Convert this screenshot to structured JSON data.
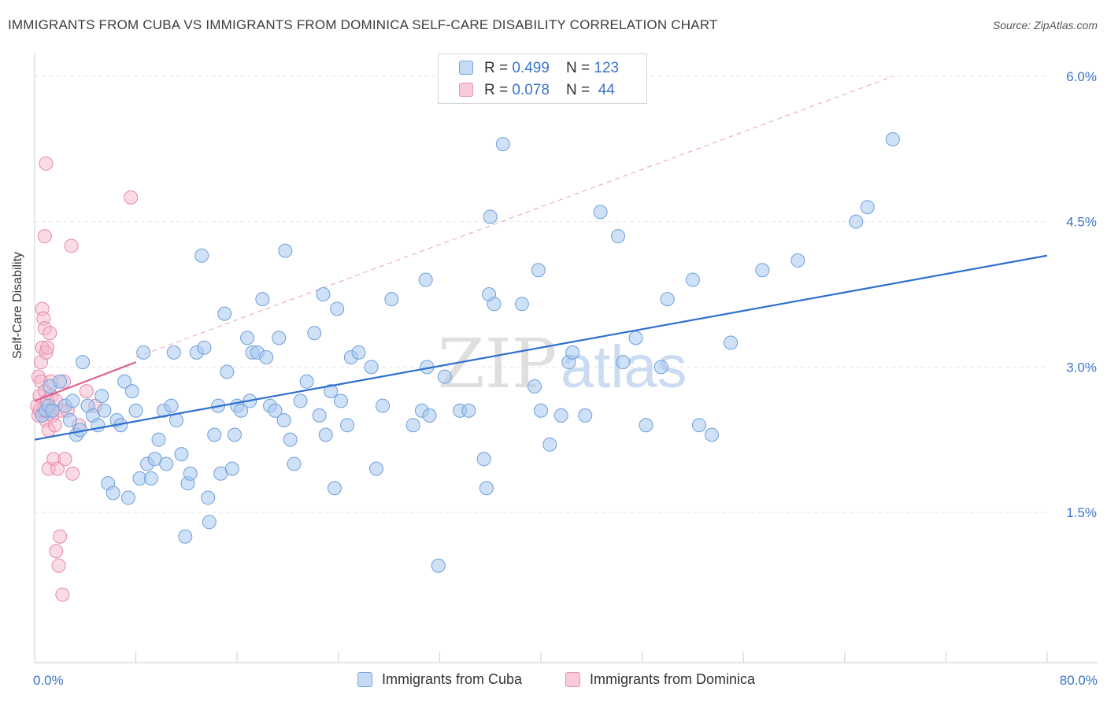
{
  "header": {
    "title": "IMMIGRANTS FROM CUBA VS IMMIGRANTS FROM DOMINICA SELF-CARE DISABILITY CORRELATION CHART",
    "source": "Source: ZipAtlas.com"
  },
  "watermark": {
    "part1": "ZIP",
    "part2": "atlas"
  },
  "legend_top": {
    "rows": [
      {
        "r_label": "R = ",
        "r_value": "0.499",
        "n_label": "N = ",
        "n_value": "123"
      },
      {
        "r_label": "R = ",
        "r_value": "0.078",
        "n_label": "N = ",
        "n_value": " 44"
      }
    ]
  },
  "legend_bottom": {
    "items": [
      {
        "label": "Immigrants from Cuba"
      },
      {
        "label": "Immigrants from Dominica"
      }
    ]
  },
  "colors": {
    "cuba_fill": "#a8c8f0",
    "cuba_stroke": "#6f9fd8",
    "cuba_line": "#2e6fcf",
    "dominica_fill": "#f6b8cc",
    "dominica_stroke": "#e58aa8",
    "dominica_line": "#e06090",
    "tick_label": "#3b74c9",
    "grid": "#e4e4e4"
  },
  "chart_data": {
    "type": "scatter",
    "title": "IMMIGRANTS FROM CUBA VS IMMIGRANTS FROM DOMINICA SELF-CARE DISABILITY CORRELATION CHART",
    "xlabel": "",
    "ylabel": "Self-Care Disability",
    "xlim": [
      0,
      80
    ],
    "ylim": [
      0,
      6.2
    ],
    "x_tick_labels": [
      "0.0%",
      "80.0%"
    ],
    "y_ticks": [
      1.5,
      3.0,
      4.5,
      6.0
    ],
    "y_tick_labels": [
      "1.5%",
      "3.0%",
      "4.5%",
      "6.0%"
    ],
    "grid": "horizontal dashed",
    "legend_position": "bottom",
    "series": [
      {
        "name": "Immigrants from Cuba",
        "R": 0.499,
        "N": 123,
        "trend": {
          "x": [
            0,
            80
          ],
          "y": [
            2.25,
            4.15
          ]
        },
        "points": [
          [
            0.6,
            2.5
          ],
          [
            0.9,
            2.55
          ],
          [
            1.1,
            2.6
          ],
          [
            1.2,
            2.8
          ],
          [
            1.4,
            2.55
          ],
          [
            2.0,
            2.85
          ],
          [
            2.4,
            2.6
          ],
          [
            2.8,
            2.45
          ],
          [
            3.0,
            2.65
          ],
          [
            3.3,
            2.3
          ],
          [
            3.6,
            2.35
          ],
          [
            3.8,
            3.05
          ],
          [
            4.2,
            2.6
          ],
          [
            4.6,
            2.5
          ],
          [
            5.0,
            2.4
          ],
          [
            5.3,
            2.7
          ],
          [
            5.5,
            2.55
          ],
          [
            5.8,
            1.8
          ],
          [
            6.2,
            1.7
          ],
          [
            6.5,
            2.45
          ],
          [
            6.8,
            2.4
          ],
          [
            7.1,
            2.85
          ],
          [
            7.4,
            1.65
          ],
          [
            7.7,
            2.75
          ],
          [
            8.0,
            2.55
          ],
          [
            8.3,
            1.85
          ],
          [
            8.6,
            3.15
          ],
          [
            8.9,
            2.0
          ],
          [
            9.2,
            1.85
          ],
          [
            9.5,
            2.05
          ],
          [
            9.8,
            2.25
          ],
          [
            10.2,
            2.55
          ],
          [
            10.4,
            2.0
          ],
          [
            10.8,
            2.6
          ],
          [
            11.0,
            3.15
          ],
          [
            11.2,
            2.45
          ],
          [
            11.6,
            2.1
          ],
          [
            11.9,
            1.25
          ],
          [
            12.1,
            1.8
          ],
          [
            12.3,
            1.9
          ],
          [
            12.8,
            3.15
          ],
          [
            13.2,
            4.15
          ],
          [
            13.4,
            3.2
          ],
          [
            13.7,
            1.65
          ],
          [
            13.8,
            1.4
          ],
          [
            14.2,
            2.3
          ],
          [
            14.5,
            2.6
          ],
          [
            14.7,
            1.9
          ],
          [
            15.0,
            3.55
          ],
          [
            15.2,
            2.95
          ],
          [
            15.6,
            1.95
          ],
          [
            15.8,
            2.3
          ],
          [
            16.0,
            2.6
          ],
          [
            16.3,
            2.55
          ],
          [
            16.8,
            3.3
          ],
          [
            17.0,
            2.65
          ],
          [
            17.2,
            3.15
          ],
          [
            17.6,
            3.15
          ],
          [
            18.0,
            3.7
          ],
          [
            18.3,
            3.1
          ],
          [
            18.6,
            2.6
          ],
          [
            19.0,
            2.55
          ],
          [
            19.3,
            3.3
          ],
          [
            19.7,
            2.45
          ],
          [
            19.8,
            4.2
          ],
          [
            20.2,
            2.25
          ],
          [
            20.5,
            2.0
          ],
          [
            21.0,
            2.65
          ],
          [
            21.5,
            2.85
          ],
          [
            22.1,
            3.35
          ],
          [
            22.5,
            2.5
          ],
          [
            22.8,
            3.75
          ],
          [
            23.0,
            2.3
          ],
          [
            23.4,
            2.75
          ],
          [
            23.7,
            1.75
          ],
          [
            23.9,
            3.6
          ],
          [
            24.2,
            2.65
          ],
          [
            24.7,
            2.4
          ],
          [
            25.0,
            3.1
          ],
          [
            25.6,
            3.15
          ],
          [
            26.6,
            3.0
          ],
          [
            27.0,
            1.95
          ],
          [
            27.5,
            2.6
          ],
          [
            28.2,
            3.7
          ],
          [
            29.9,
            2.4
          ],
          [
            30.6,
            2.55
          ],
          [
            30.9,
            3.9
          ],
          [
            31.0,
            3.0
          ],
          [
            31.2,
            2.5
          ],
          [
            31.9,
            0.95
          ],
          [
            32.4,
            2.9
          ],
          [
            33.6,
            2.55
          ],
          [
            34.3,
            2.55
          ],
          [
            35.5,
            2.05
          ],
          [
            35.7,
            1.75
          ],
          [
            35.9,
            3.75
          ],
          [
            36.0,
            4.55
          ],
          [
            36.3,
            3.65
          ],
          [
            37.0,
            5.3
          ],
          [
            38.5,
            3.65
          ],
          [
            39.5,
            2.8
          ],
          [
            39.8,
            4.0
          ],
          [
            40.0,
            2.55
          ],
          [
            40.7,
            2.2
          ],
          [
            41.6,
            2.5
          ],
          [
            42.2,
            3.05
          ],
          [
            42.5,
            3.15
          ],
          [
            43.5,
            2.5
          ],
          [
            44.7,
            4.6
          ],
          [
            46.1,
            4.35
          ],
          [
            46.5,
            3.05
          ],
          [
            47.5,
            3.3
          ],
          [
            48.3,
            2.4
          ],
          [
            49.5,
            3.0
          ],
          [
            50.0,
            3.7
          ],
          [
            52.0,
            3.9
          ],
          [
            52.5,
            2.4
          ],
          [
            53.5,
            2.3
          ],
          [
            55.0,
            3.25
          ],
          [
            57.5,
            4.0
          ],
          [
            60.3,
            4.1
          ],
          [
            64.9,
            4.5
          ],
          [
            65.8,
            4.65
          ],
          [
            67.8,
            5.35
          ]
        ]
      },
      {
        "name": "Immigrants from Dominica",
        "R": 0.078,
        "N": 44,
        "trend": {
          "x": [
            0,
            8
          ],
          "y": [
            2.65,
            3.05
          ]
        },
        "points": [
          [
            0.2,
            2.6
          ],
          [
            0.3,
            2.5
          ],
          [
            0.3,
            2.9
          ],
          [
            0.4,
            2.7
          ],
          [
            0.5,
            2.85
          ],
          [
            0.5,
            3.05
          ],
          [
            0.6,
            3.2
          ],
          [
            0.6,
            3.6
          ],
          [
            0.7,
            3.5
          ],
          [
            0.7,
            2.55
          ],
          [
            0.8,
            2.75
          ],
          [
            0.8,
            3.4
          ],
          [
            0.9,
            2.45
          ],
          [
            0.9,
            3.15
          ],
          [
            1.0,
            2.65
          ],
          [
            1.0,
            3.2
          ],
          [
            1.1,
            1.95
          ],
          [
            1.1,
            2.35
          ],
          [
            1.2,
            2.55
          ],
          [
            1.2,
            3.35
          ],
          [
            1.3,
            2.85
          ],
          [
            1.3,
            2.7
          ],
          [
            1.4,
            2.5
          ],
          [
            1.5,
            2.05
          ],
          [
            1.6,
            2.4
          ],
          [
            1.7,
            1.1
          ],
          [
            1.7,
            2.65
          ],
          [
            1.8,
            1.95
          ],
          [
            1.9,
            0.95
          ],
          [
            2.0,
            1.25
          ],
          [
            2.1,
            2.55
          ],
          [
            2.2,
            0.65
          ],
          [
            2.3,
            2.85
          ],
          [
            2.4,
            2.05
          ],
          [
            2.6,
            2.55
          ],
          [
            2.9,
            4.25
          ],
          [
            3.0,
            1.9
          ],
          [
            3.5,
            2.4
          ],
          [
            4.1,
            2.75
          ],
          [
            4.8,
            2.6
          ],
          [
            0.8,
            4.35
          ],
          [
            0.9,
            5.1
          ],
          [
            7.6,
            4.75
          ],
          [
            0.4,
            2.55
          ]
        ]
      }
    ],
    "reference_line": {
      "style": "dashed",
      "x": [
        8.0,
        67.8
      ],
      "y": [
        3.1,
        6.0
      ]
    }
  }
}
